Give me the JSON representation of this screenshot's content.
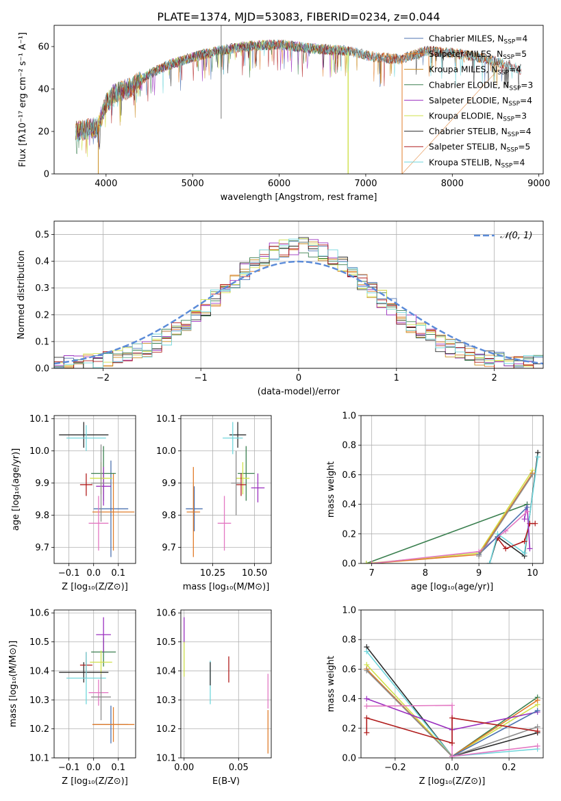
{
  "title": "PLATE=1374, MJD=53083, FIBERID=0234, z=0.044",
  "colors": {
    "MILES": [
      "#4c72b0",
      "#e17c2a",
      "#c98a1d"
    ],
    "ELODIE": [
      "#3a7f4f",
      "#9b2fbf",
      "#cfe14a"
    ],
    "STELIB": [
      "#2b2b2b",
      "#b01c1c",
      "#6fd6dc"
    ],
    "extra": [
      "#e377c2",
      "#8c8c8c"
    ],
    "gaussian": "#5b8bd8"
  },
  "chart_data": [
    {
      "id": "spectrum",
      "type": "line",
      "xlabel": "wavelength [Angstrom, rest frame]",
      "ylabel": "Flux [fλ10⁻¹⁷ erg cm⁻² s⁻¹ A⁻¹]",
      "xlim": [
        3400,
        9050
      ],
      "ylim": [
        0,
        70
      ],
      "xticks": [
        4000,
        5000,
        6000,
        7000,
        8000,
        9000
      ],
      "yticks": [
        0,
        20,
        40,
        60
      ],
      "legend_position": "top-right",
      "continuum": [
        [
          3650,
          20
        ],
        [
          3900,
          22
        ],
        [
          4000,
          33
        ],
        [
          4100,
          38
        ],
        [
          4300,
          41
        ],
        [
          4500,
          47
        ],
        [
          4700,
          51
        ],
        [
          5000,
          55
        ],
        [
          5300,
          58
        ],
        [
          5600,
          60
        ],
        [
          6000,
          61
        ],
        [
          6400,
          59
        ],
        [
          6800,
          58
        ],
        [
          7100,
          55
        ],
        [
          7400,
          54
        ],
        [
          7700,
          58
        ],
        [
          8000,
          57
        ],
        [
          8300,
          55
        ],
        [
          8600,
          52
        ],
        [
          8800,
          49
        ]
      ],
      "series": [
        {
          "name": "Chabrier MILES, N",
          "sub": "SSP",
          "n": "=4",
          "lib": "MILES",
          "idx": 0,
          "end": 8600
        },
        {
          "name": "Salpeter MILES, N",
          "sub": "SSP",
          "n": "=5",
          "lib": "MILES",
          "idx": 1,
          "end": 8600
        },
        {
          "name": "Kroupa MILES, N",
          "sub": "SSP",
          "n": "=4",
          "lib": "MILES",
          "idx": 2,
          "end": 8600
        },
        {
          "name": "Chabrier ELODIE, N",
          "sub": "SSP",
          "n": "=3",
          "lib": "ELODIE",
          "idx": 0,
          "end": 6800
        },
        {
          "name": "Salpeter ELODIE, N",
          "sub": "SSP",
          "n": "=4",
          "lib": "ELODIE",
          "idx": 1,
          "end": 6800
        },
        {
          "name": "Kroupa ELODIE, N",
          "sub": "SSP",
          "n": "=3",
          "lib": "ELODIE",
          "idx": 2,
          "end": 6800
        },
        {
          "name": "Chabrier STELIB, N",
          "sub": "SSP",
          "n": "=4",
          "lib": "STELIB",
          "idx": 0,
          "end": 8800
        },
        {
          "name": "Salpeter STELIB, N",
          "sub": "SSP",
          "n": "=5",
          "lib": "STELIB",
          "idx": 1,
          "end": 8800
        },
        {
          "name": "Kroupa STELIB, N",
          "sub": "SSP",
          "n": "=4",
          "lib": "STELIB",
          "idx": 2,
          "end": 8800
        }
      ]
    },
    {
      "id": "residuals",
      "type": "line",
      "xlabel": "(data-model)/error",
      "ylabel": "Normed distribution",
      "xlim": [
        -2.5,
        2.5
      ],
      "ylim": [
        0,
        0.55
      ],
      "xticks": [
        -2,
        -1,
        0,
        1,
        2
      ],
      "yticks": [
        0.0,
        0.1,
        0.2,
        0.3,
        0.4,
        0.5
      ],
      "grid": true,
      "legend_position": "top-right",
      "gaussian_label": "𝒩(0, 1)",
      "bin_width": 0.1
    },
    {
      "id": "age-vs-Z",
      "type": "scatter",
      "xlabel": "Z [log₁₀(Z/Z⊙)]",
      "ylabel": "age  [log₁₀(age/yr)]",
      "xlim": [
        -0.16,
        0.17
      ],
      "ylim": [
        9.65,
        10.11
      ],
      "xticks": [
        -0.1,
        0.0,
        0.1
      ],
      "yticks": [
        9.7,
        9.8,
        9.9,
        10.0,
        10.1
      ],
      "grid": true,
      "points": [
        {
          "c": "#4c72b0",
          "x": 0.07,
          "xe": 0.07,
          "y": 9.82,
          "ye": 0.15
        },
        {
          "c": "#e17c2a",
          "x": 0.08,
          "xe": 0.085,
          "y": 9.81,
          "ye": 0.12
        },
        {
          "c": "#3a7f4f",
          "x": 0.04,
          "xe": 0.05,
          "y": 9.93,
          "ye": 0.085
        },
        {
          "c": "#9b2fbf",
          "x": 0.04,
          "xe": 0.03,
          "y": 9.89,
          "ye": 0.06
        },
        {
          "c": "#cfe14a",
          "x": 0.03,
          "xe": 0.045,
          "y": 9.915,
          "ye": 0.05
        },
        {
          "c": "#2b2b2b",
          "x": -0.04,
          "xe": 0.1,
          "y": 10.05,
          "ye": 0.04
        },
        {
          "c": "#b01c1c",
          "x": -0.03,
          "xe": 0.025,
          "y": 9.895,
          "ye": 0.035
        },
        {
          "c": "#6fd6dc",
          "x": -0.03,
          "xe": 0.08,
          "y": 10.04,
          "ye": 0.04
        },
        {
          "c": "#e377c2",
          "x": 0.02,
          "xe": 0.04,
          "y": 9.775,
          "ye": 0.085
        },
        {
          "c": "#8c8c8c",
          "x": 0.03,
          "xe": 0.04,
          "y": 9.9,
          "ye": 0.12
        }
      ]
    },
    {
      "id": "age-vs-mass",
      "type": "scatter",
      "xlabel": "mass [log₁₀(M/M⊙)]",
      "ylabel": "",
      "xlim": [
        10.06,
        10.6
      ],
      "ylim": [
        9.65,
        10.11
      ],
      "xticks": [
        10.25,
        10.5
      ],
      "tick_labels": [
        "10.25",
        "10.50"
      ],
      "yticks": [
        9.7,
        9.8,
        9.9,
        10.0,
        10.1
      ],
      "grid": true,
      "points": [
        {
          "c": "#4c72b0",
          "x": 10.14,
          "xe": 0.05,
          "y": 9.82,
          "ye": 0.07
        },
        {
          "c": "#e17c2a",
          "x": 10.135,
          "xe": 0.04,
          "y": 9.81,
          "ye": 0.14
        },
        {
          "c": "#3a7f4f",
          "x": 10.45,
          "xe": 0.05,
          "y": 9.93,
          "ye": 0.085
        },
        {
          "c": "#9b2fbf",
          "x": 10.52,
          "xe": 0.04,
          "y": 9.885,
          "ye": 0.045
        },
        {
          "c": "#cfe14a",
          "x": 10.43,
          "xe": 0.04,
          "y": 9.915,
          "ye": 0.05
        },
        {
          "c": "#2b2b2b",
          "x": 10.4,
          "xe": 0.05,
          "y": 10.05,
          "ye": 0.04
        },
        {
          "c": "#b01c1c",
          "x": 10.42,
          "xe": 0.03,
          "y": 9.895,
          "ye": 0.035
        },
        {
          "c": "#6fd6dc",
          "x": 10.37,
          "xe": 0.06,
          "y": 10.04,
          "ye": 0.05
        },
        {
          "c": "#e377c2",
          "x": 10.32,
          "xe": 0.04,
          "y": 9.775,
          "ye": 0.085
        },
        {
          "c": "#8c8c8c",
          "x": 10.39,
          "xe": 0.03,
          "y": 9.9,
          "ye": 0.1
        }
      ]
    },
    {
      "id": "mass-weight-vs-age",
      "type": "line",
      "xlabel": "age  [log₁₀(age/yr)]",
      "ylabel": "mass weight",
      "xlim": [
        6.8,
        10.2
      ],
      "ylim": [
        0,
        1
      ],
      "xticks": [
        7,
        8,
        9,
        10
      ],
      "yticks": [
        0.0,
        0.2,
        0.4,
        0.6,
        0.8,
        1.0
      ],
      "grid": true,
      "series": [
        {
          "c": "#2b2b2b",
          "pts": [
            [
              9.2,
              0.0
            ],
            [
              9.35,
              0.18
            ],
            [
              9.85,
              0.05
            ],
            [
              10.1,
              0.75
            ]
          ]
        },
        {
          "c": "#6fd6dc",
          "pts": [
            [
              9.2,
              0.0
            ],
            [
              9.35,
              0.2
            ],
            [
              9.85,
              0.07
            ],
            [
              10.1,
              0.72
            ]
          ]
        },
        {
          "c": "#b01c1c",
          "pts": [
            [
              9.35,
              0.17
            ],
            [
              9.5,
              0.1
            ],
            [
              9.85,
              0.15
            ],
            [
              9.95,
              0.27
            ],
            [
              10.05,
              0.27
            ]
          ]
        },
        {
          "c": "#9b2fbf",
          "pts": [
            [
              9.85,
              0.3
            ],
            [
              9.9,
              0.4
            ],
            [
              9.95,
              0.1
            ]
          ]
        },
        {
          "c": "#3a7f4f",
          "pts": [
            [
              6.9,
              0.0
            ],
            [
              9.9,
              0.4
            ]
          ]
        },
        {
          "c": "#cfe14a",
          "pts": [
            [
              6.9,
              0.0
            ],
            [
              9.0,
              0.07
            ],
            [
              10.0,
              0.63
            ]
          ]
        },
        {
          "c": "#e17c2a",
          "pts": [
            [
              7.0,
              0.0
            ],
            [
              9.0,
              0.06
            ],
            [
              10.0,
              0.61
            ]
          ]
        },
        {
          "c": "#e377c2",
          "pts": [
            [
              7.0,
              0.0
            ],
            [
              9.0,
              0.08
            ],
            [
              9.5,
              0.22
            ],
            [
              9.9,
              0.35
            ]
          ]
        },
        {
          "c": "#4c72b0",
          "pts": [
            [
              9.0,
              0.06
            ],
            [
              9.9,
              0.38
            ]
          ]
        },
        {
          "c": "#8c8c8c",
          "pts": [
            [
              9.0,
              0.05
            ],
            [
              10.0,
              0.6
            ]
          ]
        }
      ]
    },
    {
      "id": "mass-vs-Z",
      "type": "scatter",
      "xlabel": "Z [log₁₀(Z/Z⊙)]",
      "ylabel": "mass [log₁₀(M/M⊙)]",
      "xlim": [
        -0.16,
        0.17
      ],
      "ylim": [
        10.1,
        10.61
      ],
      "xticks": [
        -0.1,
        0.0,
        0.1
      ],
      "yticks": [
        10.1,
        10.2,
        10.3,
        10.4,
        10.5,
        10.6
      ],
      "grid": true,
      "points": [
        {
          "c": "#4c72b0",
          "x": 0.07,
          "xe": 0.07,
          "y": 10.215,
          "ye": 0.065
        },
        {
          "c": "#e17c2a",
          "x": 0.08,
          "xe": 0.085,
          "y": 10.215,
          "ye": 0.06
        },
        {
          "c": "#3a7f4f",
          "x": 0.04,
          "xe": 0.05,
          "y": 10.465,
          "ye": 0.05
        },
        {
          "c": "#9b2fbf",
          "x": 0.04,
          "xe": 0.03,
          "y": 10.525,
          "ye": 0.06
        },
        {
          "c": "#cfe14a",
          "x": 0.03,
          "xe": 0.045,
          "y": 10.43,
          "ye": 0.04
        },
        {
          "c": "#2b2b2b",
          "x": -0.04,
          "xe": 0.1,
          "y": 10.395,
          "ye": 0.035
        },
        {
          "c": "#b01c1c",
          "x": -0.03,
          "xe": 0.025,
          "y": 10.42,
          "ye": 0.045
        },
        {
          "c": "#6fd6dc",
          "x": -0.03,
          "xe": 0.08,
          "y": 10.375,
          "ye": 0.09
        },
        {
          "c": "#e377c2",
          "x": 0.02,
          "xe": 0.04,
          "y": 10.325,
          "ye": 0.045
        },
        {
          "c": "#8c8c8c",
          "x": 0.03,
          "xe": 0.04,
          "y": 10.31,
          "ye": 0.08
        }
      ]
    },
    {
      "id": "mass-vs-EBV",
      "type": "scatter",
      "xlabel": "E(B-V)",
      "ylabel": "",
      "xlim": [
        -0.003,
        0.08
      ],
      "ylim": [
        10.1,
        10.61
      ],
      "xticks": [
        0.0,
        0.05
      ],
      "tick_labels": [
        "0.00",
        "0.05"
      ],
      "yticks": [
        10.1,
        10.2,
        10.3,
        10.4,
        10.5,
        10.6
      ],
      "grid": true,
      "points": [
        {
          "c": "#9b2fbf",
          "x": 0.0,
          "xe": 0,
          "y": 10.54,
          "ye": 0.045
        },
        {
          "c": "#cfe14a",
          "x": 0.0,
          "xe": 0,
          "y": 10.44,
          "ye": 0.06
        },
        {
          "c": "#6fd6dc",
          "x": 0.024,
          "xe": 0,
          "y": 10.36,
          "ye": 0.075
        },
        {
          "c": "#2b2b2b",
          "x": 0.024,
          "xe": 0,
          "y": 10.39,
          "ye": 0.04
        },
        {
          "c": "#b01c1c",
          "x": 0.041,
          "xe": 0,
          "y": 10.405,
          "ye": 0.045
        },
        {
          "c": "#e377c2",
          "x": 0.077,
          "xe": 0,
          "y": 10.33,
          "ye": 0.06
        },
        {
          "c": "#e17c2a",
          "x": 0.077,
          "xe": 0,
          "y": 10.19,
          "ye": 0.075
        }
      ]
    },
    {
      "id": "mass-weight-vs-Z",
      "type": "line",
      "xlabel": "Z [log₁₀(Z/Z⊙)]",
      "ylabel": "mass weight",
      "xlim": [
        -0.32,
        0.32
      ],
      "ylim": [
        0,
        1
      ],
      "xticks": [
        -0.2,
        0.0,
        0.2
      ],
      "tick_labels": [
        "−0.2",
        "0.0",
        "0.2"
      ],
      "yticks": [
        0.0,
        0.2,
        0.4,
        0.6,
        0.8,
        1.0
      ],
      "grid": true,
      "series": [
        {
          "c": "#2b2b2b",
          "pts": [
            [
              -0.3,
              0.75
            ],
            [
              0.0,
              0.01
            ],
            [
              0.3,
              0.17
            ]
          ]
        },
        {
          "c": "#6fd6dc",
          "pts": [
            [
              -0.3,
              0.72
            ],
            [
              0.0,
              0.01
            ],
            [
              0.3,
              0.06
            ]
          ]
        },
        {
          "c": "#3a7f4f",
          "pts": [
            [
              -0.3,
              0.6
            ],
            [
              0.0,
              0.01
            ],
            [
              0.3,
              0.41
            ]
          ]
        },
        {
          "c": "#cfe14a",
          "pts": [
            [
              -0.3,
              0.63
            ],
            [
              0.0,
              0.01
            ],
            [
              0.3,
              0.36
            ]
          ]
        },
        {
          "c": "#e17c2a",
          "pts": [
            [
              -0.3,
              0.6
            ],
            [
              0.0,
              0.01
            ],
            [
              0.3,
              0.39
            ]
          ]
        },
        {
          "c": "#8c8c8c",
          "pts": [
            [
              -0.3,
              0.59
            ],
            [
              0.0,
              0.01
            ],
            [
              0.3,
              0.21
            ]
          ]
        },
        {
          "c": "#9b2fbf",
          "pts": [
            [
              -0.3,
              0.4
            ],
            [
              0.0,
              0.19
            ],
            [
              0.3,
              0.31
            ]
          ]
        },
        {
          "c": "#4c72b0",
          "pts": [
            [
              0.0,
              0.01
            ],
            [
              0.3,
              0.32
            ]
          ]
        },
        {
          "c": "#e377c2",
          "pts": [
            [
              -0.3,
              0.35
            ],
            [
              0.0,
              0.355
            ],
            [
              0.0,
              0.01
            ],
            [
              0.3,
              0.08
            ]
          ]
        },
        {
          "c": "#b01c1c",
          "pts": [
            [
              -0.3,
              0.17
            ],
            [
              -0.3,
              0.27
            ],
            [
              0.0,
              0.1
            ],
            [
              0.0,
              0.27
            ],
            [
              0.3,
              0.18
            ]
          ]
        }
      ]
    }
  ]
}
